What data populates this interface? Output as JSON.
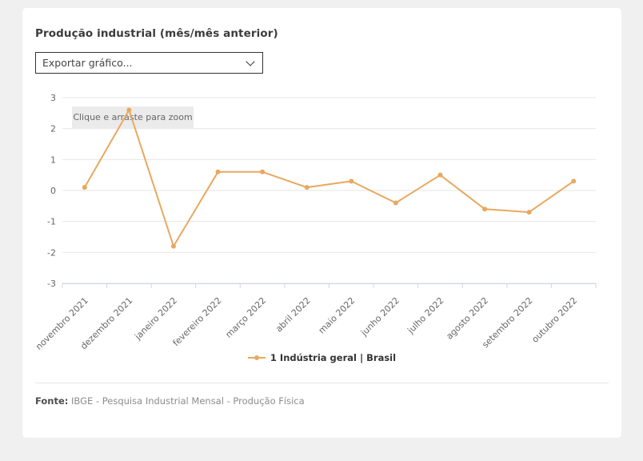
{
  "page": {
    "title": "Produção industrial (mês/mês anterior)",
    "export_select": {
      "value": "Exportar gráfico..."
    },
    "legend": {
      "label": "1 Indústria geral | Brasil"
    },
    "footer": {
      "label": "Fonte:",
      "text": "IBGE - Pesquisa Industrial Mensal - Produção Física"
    }
  },
  "chart_data": {
    "type": "line",
    "title": "Produção industrial (mês/mês anterior)",
    "categories": [
      "novembro 2021",
      "dezembro 2021",
      "janeiro 2022",
      "fevereiro 2022",
      "março 2022",
      "abril 2022",
      "maio 2022",
      "junho 2022",
      "julho 2022",
      "agosto 2022",
      "setembro 2022",
      "outubro 2022"
    ],
    "series": [
      {
        "name": "1 Indústria geral | Brasil",
        "values": [
          0.1,
          2.6,
          -1.8,
          0.6,
          0.6,
          0.1,
          0.3,
          -0.4,
          0.5,
          -0.6,
          -0.7,
          0.3
        ],
        "color": "#e8a860"
      }
    ],
    "xlabel": "",
    "ylabel": "",
    "ylim": [
      -3,
      3
    ],
    "ytick_step": 1,
    "yticks": [
      3,
      2,
      1,
      0,
      -1,
      -2,
      -3
    ],
    "grid": true,
    "legend_position": "bottom",
    "zoom_hint": "Clique e arraste para zoom",
    "colors": {
      "gridline": "#e6e6e6",
      "axis_line": "#ccd6eb",
      "tick_label": "#666666",
      "zoom_hint_bg": "#ebebeb",
      "zoom_hint_text": "#666666"
    }
  }
}
